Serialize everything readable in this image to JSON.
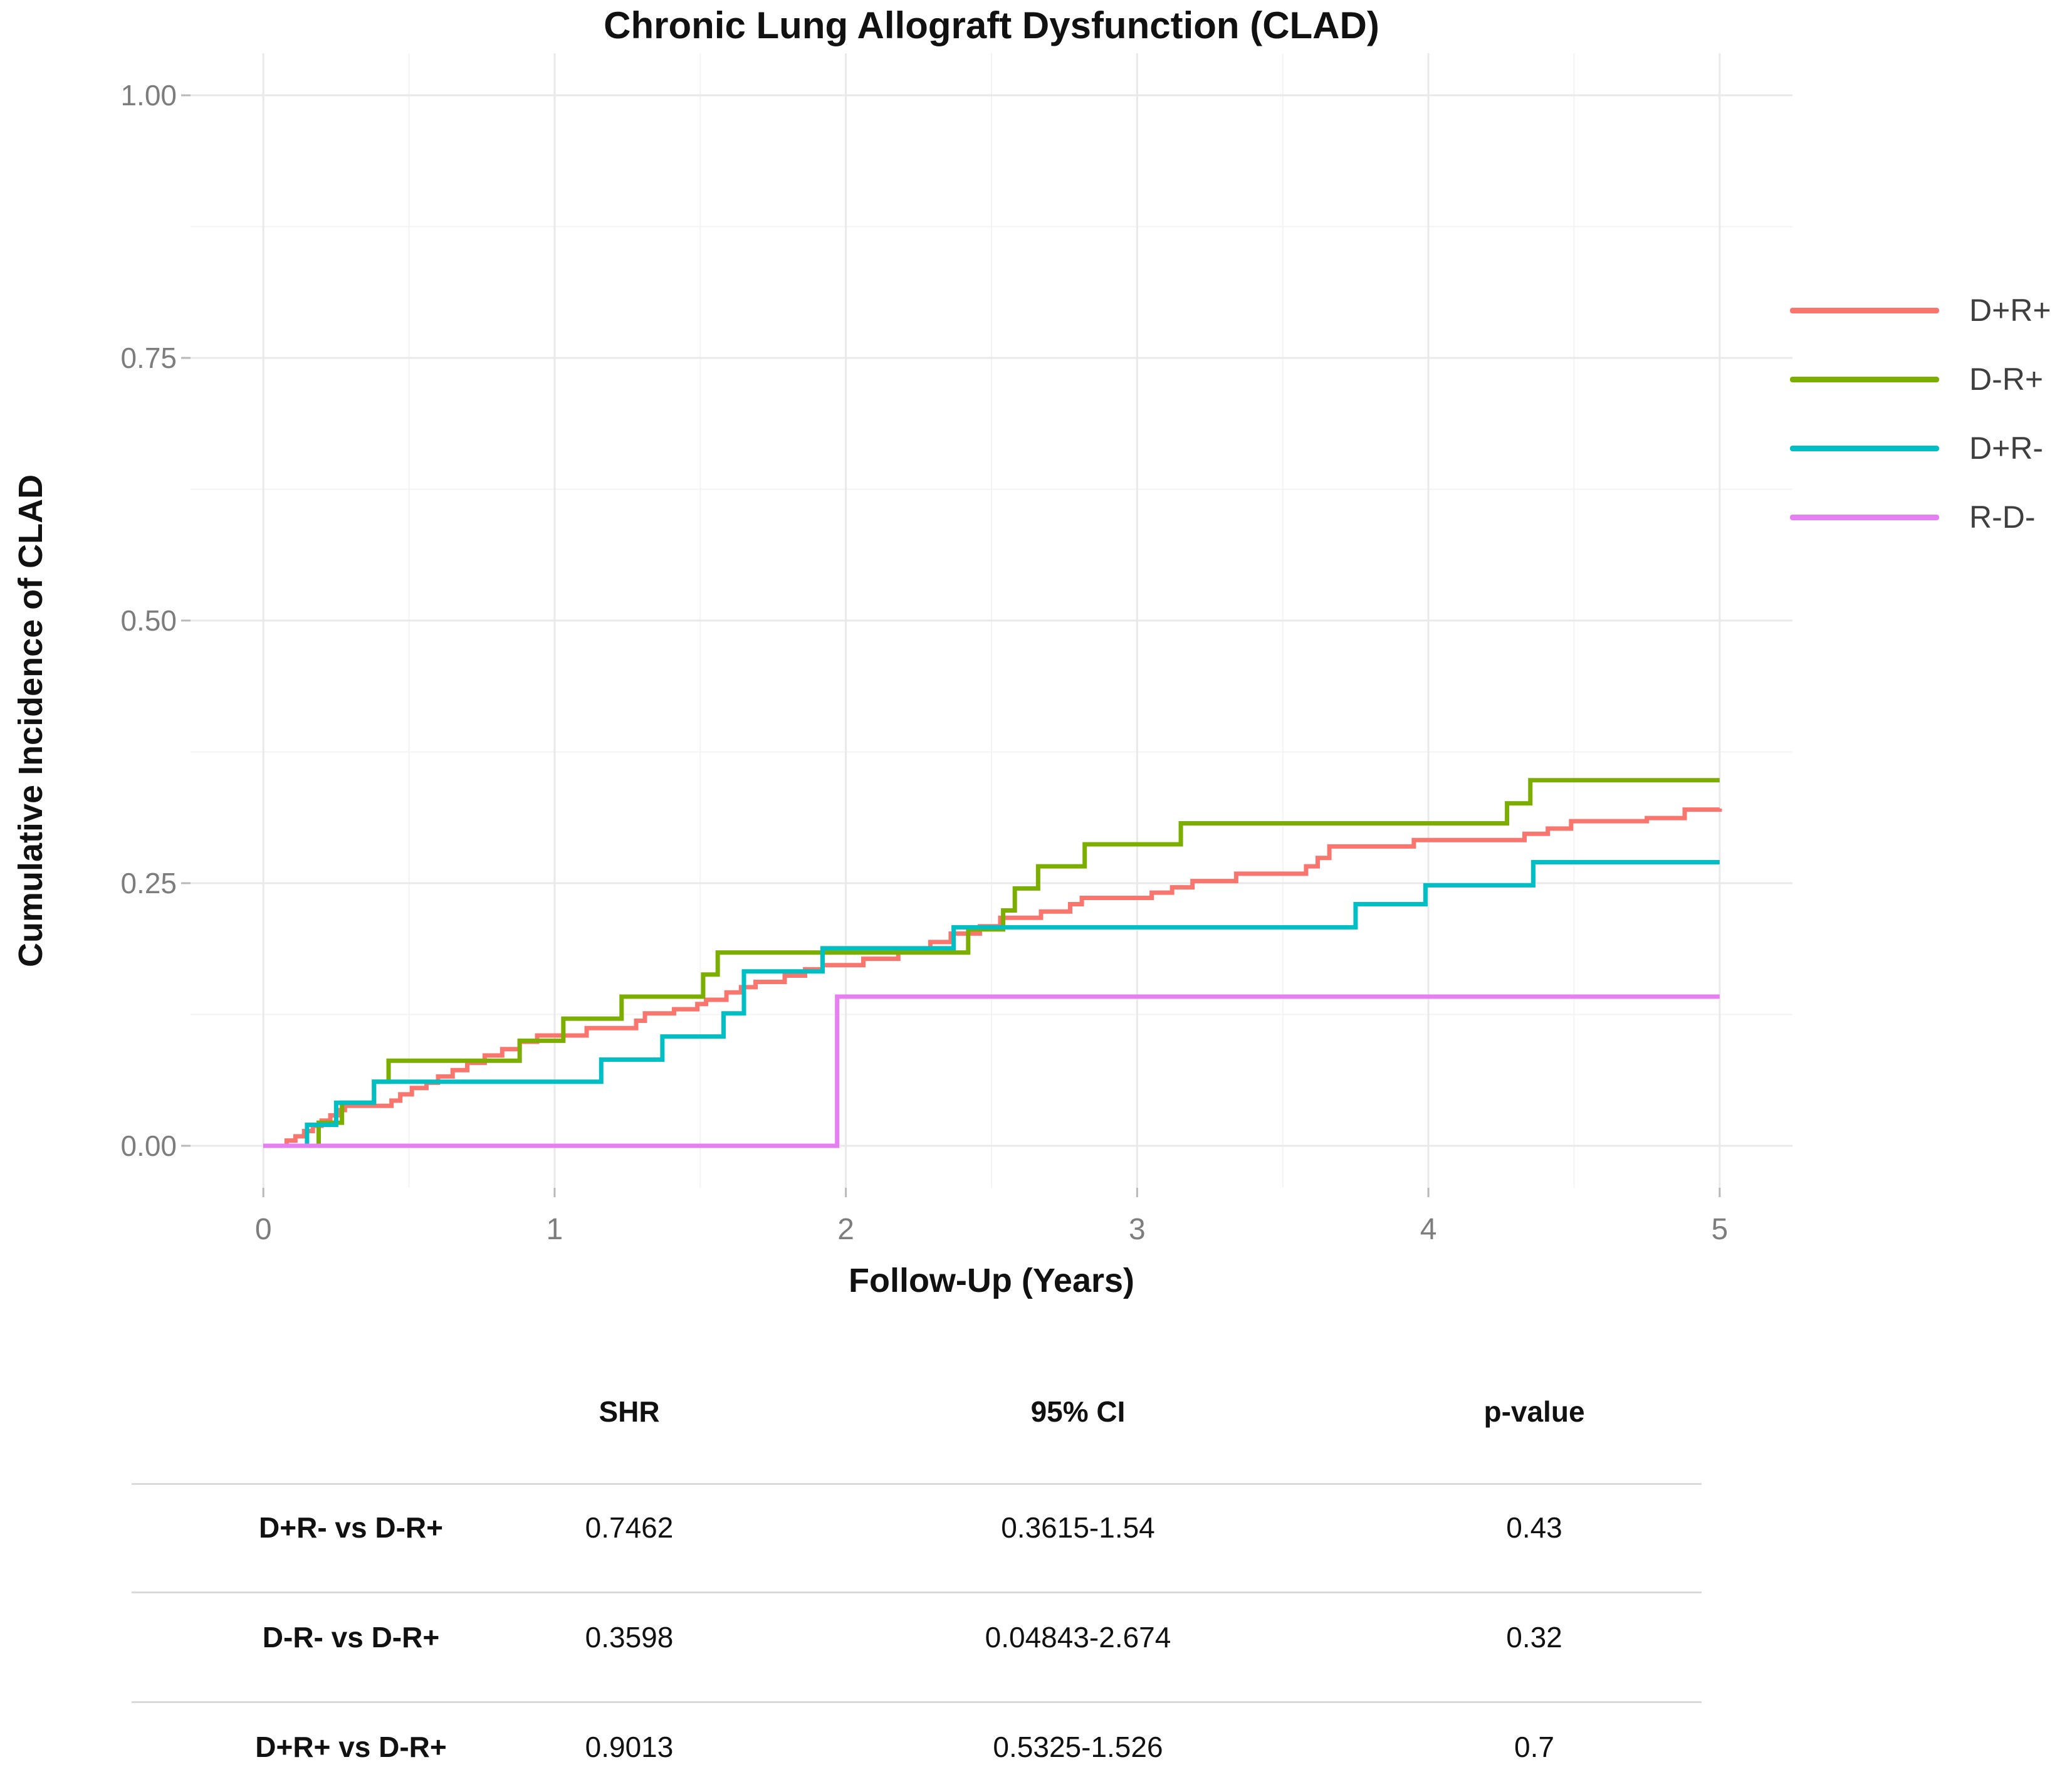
{
  "title": "Chronic Lung Allograft Dysfunction (CLAD)",
  "y_axis": {
    "title": "Cumulative Incidence of CLAD",
    "tick_labels": [
      "0.00",
      "0.25",
      "0.50",
      "0.75",
      "1.00"
    ],
    "tick_values": [
      0,
      0.25,
      0.5,
      0.75,
      1.0
    ],
    "minor_gridlines": [
      0.125,
      0.375,
      0.625,
      0.875
    ]
  },
  "x_axis": {
    "title": "Follow-Up (Years)",
    "tick_labels": [
      "0",
      "1",
      "2",
      "3",
      "4",
      "5"
    ],
    "tick_values": [
      0,
      1,
      2,
      3,
      4,
      5
    ],
    "minor_gridlines": [
      0.5,
      1.5,
      2.5,
      3.5,
      4.5
    ]
  },
  "legend": {
    "position": "right",
    "entries": [
      {
        "label": "D+R+",
        "color": "#F8766D"
      },
      {
        "label": "D-R+",
        "color": "#7CAE00"
      },
      {
        "label": "D+R-",
        "color": "#00BFC4"
      },
      {
        "label": "R-D-",
        "color": "#E57FF2"
      }
    ]
  },
  "chart_data": {
    "type": "line",
    "subtype": "step-cumulative-incidence",
    "title": "Chronic Lung Allograft Dysfunction (CLAD)",
    "xlabel": "Follow-Up (Years)",
    "ylabel": "Cumulative Incidence of CLAD",
    "xlim": [
      0,
      5
    ],
    "ylim": [
      0,
      1
    ],
    "grid": true,
    "legend_position": "right",
    "series": [
      {
        "name": "D+R+",
        "color": "#F8766D",
        "steps": [
          [
            0,
            0
          ],
          [
            0.08,
            0.005
          ],
          [
            0.11,
            0.009
          ],
          [
            0.14,
            0.014
          ],
          [
            0.17,
            0.019
          ],
          [
            0.2,
            0.024
          ],
          [
            0.23,
            0.029
          ],
          [
            0.26,
            0.034
          ],
          [
            0.28,
            0.038
          ],
          [
            0.44,
            0.043
          ],
          [
            0.47,
            0.049
          ],
          [
            0.51,
            0.055
          ],
          [
            0.56,
            0.06
          ],
          [
            0.6,
            0.066
          ],
          [
            0.65,
            0.072
          ],
          [
            0.7,
            0.079
          ],
          [
            0.76,
            0.086
          ],
          [
            0.82,
            0.092
          ],
          [
            0.88,
            0.099
          ],
          [
            0.94,
            0.105
          ],
          [
            1.11,
            0.112
          ],
          [
            1.28,
            0.119
          ],
          [
            1.31,
            0.126
          ],
          [
            1.41,
            0.13
          ],
          [
            1.49,
            0.135
          ],
          [
            1.52,
            0.139
          ],
          [
            1.59,
            0.146
          ],
          [
            1.64,
            0.151
          ],
          [
            1.69,
            0.156
          ],
          [
            1.79,
            0.162
          ],
          [
            1.86,
            0.168
          ],
          [
            1.92,
            0.172
          ],
          [
            2.06,
            0.178
          ],
          [
            2.18,
            0.185
          ],
          [
            2.29,
            0.194
          ],
          [
            2.36,
            0.202
          ],
          [
            2.46,
            0.209
          ],
          [
            2.53,
            0.217
          ],
          [
            2.67,
            0.223
          ],
          [
            2.77,
            0.23
          ],
          [
            2.81,
            0.236
          ],
          [
            3.05,
            0.241
          ],
          [
            3.12,
            0.246
          ],
          [
            3.19,
            0.252
          ],
          [
            3.34,
            0.259
          ],
          [
            3.58,
            0.266
          ],
          [
            3.62,
            0.274
          ],
          [
            3.66,
            0.285
          ],
          [
            3.95,
            0.291
          ],
          [
            4.33,
            0.297
          ],
          [
            4.41,
            0.302
          ],
          [
            4.49,
            0.309
          ],
          [
            4.75,
            0.312
          ],
          [
            4.88,
            0.32
          ],
          [
            5.0,
            0.321
          ]
        ]
      },
      {
        "name": "D-R+",
        "color": "#7CAE00",
        "steps": [
          [
            0,
            0
          ],
          [
            0.19,
            0.022
          ],
          [
            0.27,
            0.041
          ],
          [
            0.38,
            0.061
          ],
          [
            0.43,
            0.081
          ],
          [
            0.88,
            0.1
          ],
          [
            1.03,
            0.121
          ],
          [
            1.23,
            0.142
          ],
          [
            1.51,
            0.163
          ],
          [
            1.56,
            0.184
          ],
          [
            2.42,
            0.206
          ],
          [
            2.54,
            0.224
          ],
          [
            2.58,
            0.245
          ],
          [
            2.66,
            0.266
          ],
          [
            2.82,
            0.287
          ],
          [
            3.15,
            0.307
          ],
          [
            4.27,
            0.326
          ],
          [
            4.35,
            0.348
          ],
          [
            5.0,
            0.348
          ]
        ]
      },
      {
        "name": "D+R-",
        "color": "#00BFC4",
        "steps": [
          [
            0,
            0
          ],
          [
            0.15,
            0.02
          ],
          [
            0.25,
            0.041
          ],
          [
            0.38,
            0.061
          ],
          [
            1.16,
            0.082
          ],
          [
            1.37,
            0.104
          ],
          [
            1.58,
            0.126
          ],
          [
            1.65,
            0.166
          ],
          [
            1.92,
            0.188
          ],
          [
            2.37,
            0.208
          ],
          [
            3.75,
            0.23
          ],
          [
            3.99,
            0.248
          ],
          [
            4.36,
            0.27
          ],
          [
            5.0,
            0.27
          ]
        ]
      },
      {
        "name": "R-D-",
        "color": "#E57FF2",
        "steps": [
          [
            0,
            0
          ],
          [
            1.97,
            0.142
          ],
          [
            5.0,
            0.142
          ]
        ]
      }
    ]
  },
  "table": {
    "headers": [
      "SHR",
      "95% CI",
      "p-value"
    ],
    "rows": [
      {
        "comparison": "D+R- vs D-R+",
        "shr": "0.7462",
        "ci": "0.3615-1.54",
        "p": "0.43"
      },
      {
        "comparison": "D-R- vs D-R+",
        "shr": "0.3598",
        "ci": "0.04843-2.674",
        "p": "0.32"
      },
      {
        "comparison": "D+R+ vs D-R+",
        "shr": "0.9013",
        "ci": "0.5325-1.526",
        "p": "0.7"
      }
    ]
  },
  "colors": {
    "background": "#ffffff",
    "grid_major": "#e9e9e9",
    "grid_minor": "#f3f3f3",
    "tick_mark": "#b8b8b8",
    "tick_text": "#7d7d7d",
    "title_text": "#111111",
    "table_rule": "#dadada"
  }
}
